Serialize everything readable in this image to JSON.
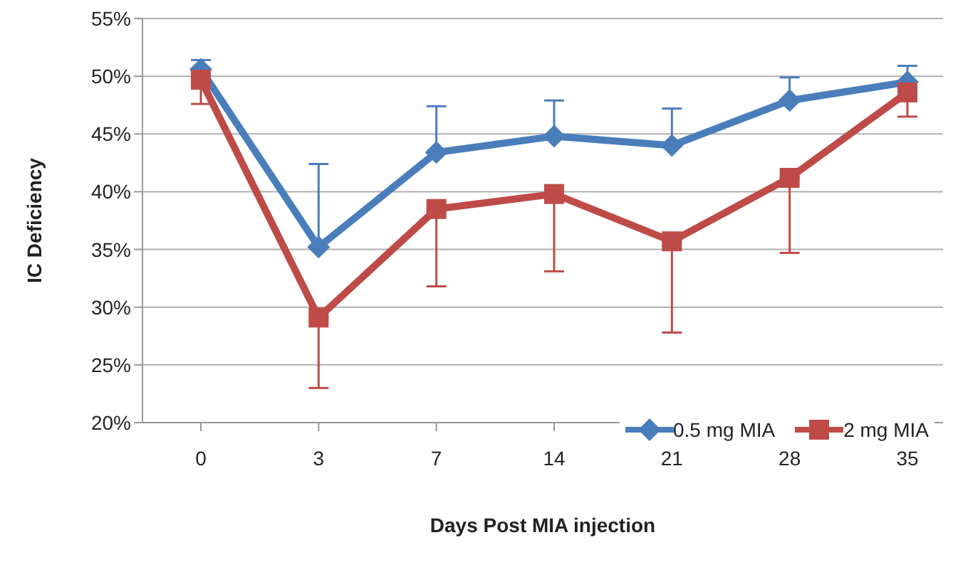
{
  "chart_data": {
    "type": "line",
    "xlabel": "Days Post MIA injection",
    "ylabel": "IC Deficiency",
    "categories": [
      "0",
      "3",
      "7",
      "14",
      "21",
      "28",
      "35"
    ],
    "series": [
      {
        "name": "0.5 mg MIA",
        "color": "#4a7ebb",
        "marker": "diamond",
        "values": [
          50.6,
          35.2,
          43.4,
          44.8,
          44.0,
          47.9,
          49.5
        ],
        "errors": [
          [
            50.6,
            51.4
          ],
          [
            35.2,
            42.4
          ],
          [
            43.4,
            47.4
          ],
          [
            44.8,
            47.9
          ],
          [
            44.0,
            47.2
          ],
          [
            47.9,
            49.9
          ],
          [
            49.5,
            50.9
          ]
        ]
      },
      {
        "name": "2 mg MIA",
        "color": "#be4b48",
        "marker": "square",
        "values": [
          49.7,
          29.1,
          38.5,
          39.8,
          35.7,
          41.2,
          48.6
        ],
        "errors": [
          [
            47.6,
            49.7
          ],
          [
            23.0,
            29.1
          ],
          [
            31.8,
            38.5
          ],
          [
            33.1,
            39.8
          ],
          [
            27.8,
            35.7
          ],
          [
            34.7,
            41.2
          ],
          [
            46.5,
            48.6
          ]
        ]
      }
    ],
    "ylim": [
      20,
      55
    ],
    "yticks": [
      {
        "value": 20,
        "label": "20%"
      },
      {
        "value": 25,
        "label": "25%"
      },
      {
        "value": 30,
        "label": "30%"
      },
      {
        "value": 35,
        "label": "35%"
      },
      {
        "value": 40,
        "label": "40%"
      },
      {
        "value": 45,
        "label": "45%"
      },
      {
        "value": 50,
        "label": "50%"
      },
      {
        "value": 55,
        "label": "55%"
      }
    ],
    "grid": "y",
    "legend": "bottom right",
    "line_style": "solid"
  }
}
